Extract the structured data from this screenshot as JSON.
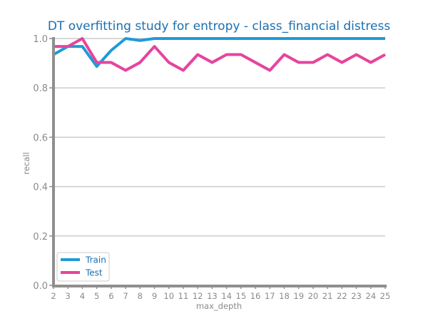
{
  "chart_data": {
    "type": "line",
    "title": "DT overfitting study for entropy - class_financial distress",
    "xlabel": "max_depth",
    "ylabel": "recall",
    "x": [
      2,
      3,
      4,
      5,
      6,
      7,
      8,
      9,
      10,
      11,
      12,
      13,
      14,
      15,
      16,
      17,
      18,
      19,
      20,
      21,
      22,
      23,
      24,
      25
    ],
    "xlim": [
      2,
      25
    ],
    "ylim": [
      0.0,
      1.0
    ],
    "yticks": [
      0.0,
      0.2,
      0.4,
      0.6,
      0.8,
      1.0
    ],
    "ytick_labels": [
      "0.0",
      "0.2",
      "0.4",
      "0.6",
      "0.8",
      "1.0"
    ],
    "grid": true,
    "legend_position": "lower-left",
    "series": [
      {
        "name": "Train",
        "color": "#1f9bd7",
        "values": [
          0.935,
          0.968,
          0.968,
          0.887,
          0.952,
          1.0,
          0.992,
          1.0,
          1.0,
          1.0,
          1.0,
          1.0,
          1.0,
          1.0,
          1.0,
          1.0,
          1.0,
          1.0,
          1.0,
          1.0,
          1.0,
          1.0,
          1.0,
          1.0
        ]
      },
      {
        "name": "Test",
        "color": "#e6449d",
        "values": [
          0.968,
          0.968,
          1.0,
          0.903,
          0.903,
          0.871,
          0.903,
          0.968,
          0.903,
          0.871,
          0.935,
          0.903,
          0.935,
          0.935,
          0.903,
          0.871,
          0.935,
          0.903,
          0.903,
          0.935,
          0.903,
          0.935,
          0.903,
          0.935
        ]
      }
    ]
  }
}
